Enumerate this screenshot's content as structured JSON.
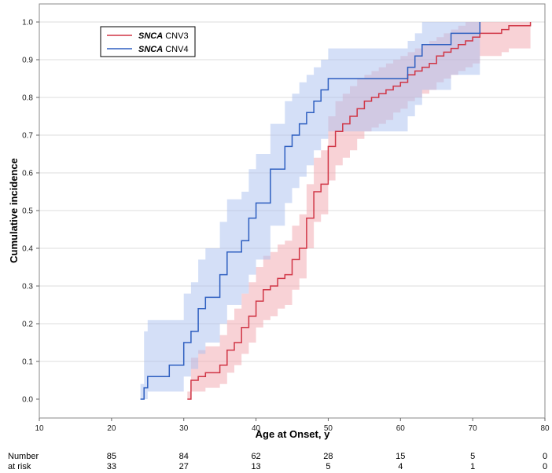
{
  "chart_data": {
    "type": "line",
    "title": "",
    "xlabel": "Age at Onset, y",
    "ylabel": "Cumulative incidence",
    "xlim": [
      10,
      80
    ],
    "ylim": [
      0,
      1.0
    ],
    "xticks": [
      10,
      20,
      30,
      40,
      50,
      60,
      70,
      80
    ],
    "yticks": [
      0.0,
      0.1,
      0.2,
      0.3,
      0.4,
      0.5,
      0.6,
      0.7,
      0.8,
      0.9,
      1.0
    ],
    "ytick_labels": [
      "0.0",
      "0.1",
      "0.2",
      "0.3",
      "0.4",
      "0.5",
      "0.6",
      "0.7",
      "0.8",
      "0.9",
      "1.0"
    ],
    "grid": "horizontal",
    "legend_position": "top-left",
    "series": [
      {
        "name": "CNV3",
        "name_italic": "SNCA",
        "color": "#d03545",
        "band_color": "#f2a5ad",
        "x": [
          30.5,
          31,
          32,
          33,
          35,
          36,
          37,
          38,
          39,
          40,
          41,
          42,
          43,
          44,
          45,
          46,
          47,
          48,
          49,
          50,
          51,
          52,
          53,
          54,
          55,
          56,
          57,
          58,
          59,
          60,
          61,
          62,
          63,
          64,
          65,
          66,
          67,
          68,
          69,
          70,
          71,
          72,
          74,
          75,
          78
        ],
        "y": [
          0.0,
          0.05,
          0.06,
          0.07,
          0.09,
          0.13,
          0.15,
          0.19,
          0.22,
          0.26,
          0.29,
          0.3,
          0.32,
          0.33,
          0.37,
          0.4,
          0.48,
          0.55,
          0.57,
          0.67,
          0.71,
          0.73,
          0.75,
          0.77,
          0.79,
          0.8,
          0.81,
          0.82,
          0.83,
          0.84,
          0.86,
          0.87,
          0.88,
          0.89,
          0.91,
          0.92,
          0.93,
          0.94,
          0.95,
          0.96,
          0.97,
          0.97,
          0.98,
          0.99,
          1.0
        ],
        "lower": [
          0.0,
          0.02,
          0.02,
          0.03,
          0.04,
          0.07,
          0.09,
          0.12,
          0.15,
          0.19,
          0.21,
          0.22,
          0.24,
          0.25,
          0.29,
          0.32,
          0.4,
          0.47,
          0.49,
          0.58,
          0.62,
          0.64,
          0.66,
          0.69,
          0.71,
          0.72,
          0.73,
          0.74,
          0.76,
          0.77,
          0.79,
          0.8,
          0.81,
          0.82,
          0.84,
          0.85,
          0.86,
          0.87,
          0.88,
          0.89,
          0.91,
          0.91,
          0.92,
          0.93,
          0.93
        ],
        "upper": [
          0.02,
          0.11,
          0.13,
          0.14,
          0.17,
          0.21,
          0.24,
          0.28,
          0.31,
          0.35,
          0.38,
          0.39,
          0.41,
          0.42,
          0.46,
          0.49,
          0.57,
          0.64,
          0.66,
          0.75,
          0.79,
          0.81,
          0.83,
          0.85,
          0.86,
          0.87,
          0.88,
          0.89,
          0.9,
          0.91,
          0.92,
          0.93,
          0.94,
          0.95,
          0.96,
          0.97,
          0.98,
          0.99,
          1.0,
          1.0,
          1.0,
          1.0,
          1.0,
          1.0,
          1.0
        ]
      },
      {
        "name": "CNV4",
        "name_italic": "SNCA",
        "color": "#2e5fc0",
        "band_color": "#a9bff0",
        "x": [
          24,
          24.5,
          25,
          28,
          30,
          31,
          32,
          33,
          35,
          36,
          38,
          39,
          40,
          42,
          44,
          45,
          46,
          47,
          48,
          49,
          50,
          55,
          60,
          61,
          62,
          63,
          64,
          65,
          67,
          68,
          71
        ],
        "y": [
          0.0,
          0.03,
          0.06,
          0.09,
          0.15,
          0.18,
          0.24,
          0.27,
          0.33,
          0.39,
          0.42,
          0.48,
          0.52,
          0.61,
          0.67,
          0.7,
          0.73,
          0.76,
          0.79,
          0.82,
          0.85,
          0.85,
          0.85,
          0.88,
          0.91,
          0.94,
          0.94,
          0.94,
          0.97,
          0.97,
          1.0
        ],
        "lower": [
          0.0,
          0.0,
          0.02,
          0.02,
          0.06,
          0.08,
          0.12,
          0.15,
          0.2,
          0.25,
          0.28,
          0.33,
          0.37,
          0.46,
          0.52,
          0.56,
          0.59,
          0.62,
          0.66,
          0.69,
          0.71,
          0.71,
          0.71,
          0.75,
          0.78,
          0.82,
          0.82,
          0.82,
          0.86,
          0.86,
          0.86
        ],
        "upper": [
          0.04,
          0.18,
          0.21,
          0.21,
          0.28,
          0.31,
          0.37,
          0.4,
          0.47,
          0.53,
          0.55,
          0.61,
          0.65,
          0.73,
          0.79,
          0.81,
          0.84,
          0.86,
          0.88,
          0.9,
          0.93,
          0.93,
          0.93,
          0.95,
          0.97,
          1.0,
          1.0,
          1.0,
          1.0,
          1.0,
          1.0
        ]
      }
    ],
    "risk_table": {
      "label_line1": "Number",
      "label_line2": "at risk",
      "x": [
        20,
        30,
        40,
        50,
        60,
        70,
        80
      ],
      "rows": [
        [
          "85",
          "84",
          "62",
          "28",
          "15",
          "5",
          "0"
        ],
        [
          "33",
          "27",
          "13",
          "5",
          "4",
          "1",
          "0"
        ]
      ]
    }
  }
}
